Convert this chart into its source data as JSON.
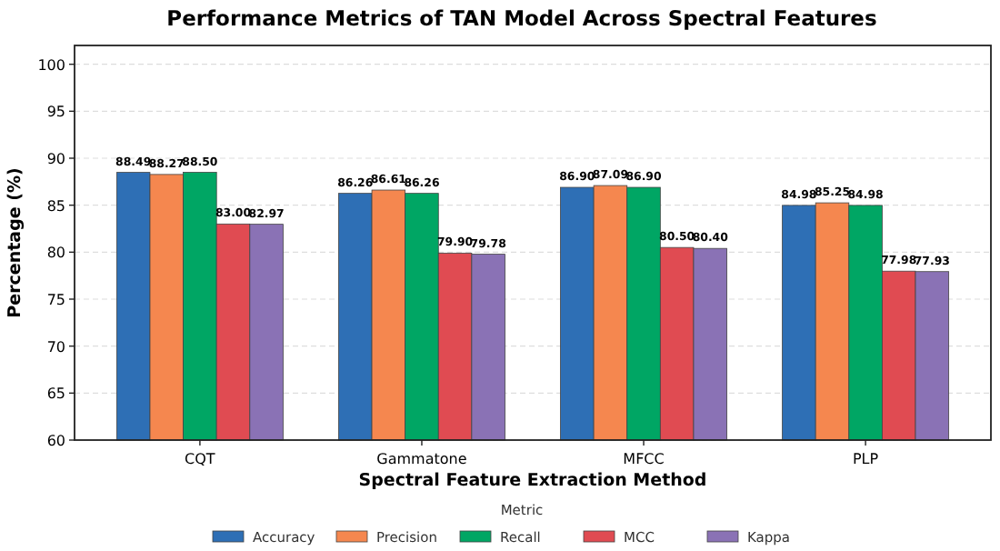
{
  "chart_data": {
    "type": "bar",
    "title": "Performance Metrics of TAN Model Across Spectral Features",
    "xlabel": "Spectral Feature Extraction Method",
    "ylabel": "Percentage (%)",
    "legend_title": "Metric",
    "categories": [
      "CQT",
      "Gammatone",
      "MFCC",
      "PLP"
    ],
    "series": [
      {
        "name": "Accuracy",
        "color": "#2e6fb5",
        "values": [
          88.49,
          86.26,
          86.9,
          84.98
        ],
        "value_labels": [
          "88.49",
          "86.26",
          "86.90",
          "84.98"
        ]
      },
      {
        "name": "Precision",
        "color": "#f5874f",
        "values": [
          88.27,
          86.61,
          87.09,
          85.25
        ],
        "value_labels": [
          "88.27",
          "86.61",
          "87.09",
          "85.25"
        ]
      },
      {
        "name": "Recall",
        "color": "#00a664",
        "values": [
          88.5,
          86.26,
          86.9,
          84.98
        ],
        "value_labels": [
          "88.50",
          "86.26",
          "86.90",
          "84.98"
        ]
      },
      {
        "name": "MCC",
        "color": "#e04b52",
        "values": [
          83.0,
          79.9,
          80.5,
          77.98
        ],
        "value_labels": [
          "83.00",
          "79.90",
          "80.50",
          "77.98"
        ]
      },
      {
        "name": "Kappa",
        "color": "#8a72b5",
        "values": [
          82.97,
          79.78,
          80.4,
          77.93
        ],
        "value_labels": [
          "82.97",
          "79.78",
          "80.40",
          "77.93"
        ]
      }
    ],
    "ylim": [
      60,
      102
    ],
    "yticks": [
      60,
      65,
      70,
      75,
      80,
      85,
      90,
      95,
      100
    ],
    "grid": "y",
    "legend": "bottom"
  }
}
